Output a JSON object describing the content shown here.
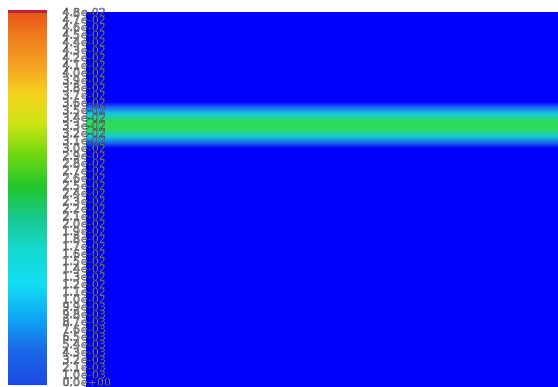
{
  "colormap": {
    "stops": [
      {
        "t": 0.0,
        "color": "#e8541a"
      },
      {
        "t": 0.06,
        "color": "#ee7a1c"
      },
      {
        "t": 0.14,
        "color": "#f4a020"
      },
      {
        "t": 0.22,
        "color": "#f5d21e"
      },
      {
        "t": 0.3,
        "color": "#cce515"
      },
      {
        "t": 0.38,
        "color": "#72d90f"
      },
      {
        "t": 0.47,
        "color": "#1fc62c"
      },
      {
        "t": 0.55,
        "color": "#18c88e"
      },
      {
        "t": 0.64,
        "color": "#14d9cf"
      },
      {
        "t": 0.73,
        "color": "#12ddf4"
      },
      {
        "t": 0.82,
        "color": "#0ea6f6"
      },
      {
        "t": 0.91,
        "color": "#1a66e6"
      },
      {
        "t": 1.0,
        "color": "#1b49e2"
      }
    ],
    "top_edge_color": "#c81e2a"
  },
  "tick_labels": [
    "4.8",
    "4.7",
    "4.6",
    "4.5",
    "4.4",
    "4.3",
    "4.2",
    "4.1",
    "4.0",
    "3.9",
    "3.8",
    "3.7",
    "3.6",
    "3.5",
    "3.4",
    "3.3",
    "3.2",
    "3.1",
    "3.0",
    "2.9",
    "2.8",
    "2.7",
    "2.6",
    "2.5",
    "2.4",
    "2.3",
    "2.2",
    "2.1",
    "2.0",
    "1.9",
    "1.8",
    "1.7",
    "1.6",
    "1.5",
    "1.4",
    "1.3",
    "1.2",
    "1.1",
    "1.0",
    "9.9",
    "9.8",
    "8.7",
    "7.6",
    "6.5",
    "5.4",
    "4.3",
    "3.2",
    "2.1",
    "1.0",
    "0.0"
  ],
  "tick_exponents": [
    "e-02",
    "e-02",
    "e-02",
    "e-02",
    "e-02",
    "e-02",
    "e-02",
    "e-02",
    "e-02",
    "e-02",
    "e-02",
    "e-02",
    "e-02",
    "e-02",
    "e-02",
    "e-02",
    "e-02",
    "e-02",
    "e-02",
    "e-02",
    "e-02",
    "e-02",
    "e-02",
    "e-02",
    "e-02",
    "e-02",
    "e-02",
    "e-02",
    "e-02",
    "e-02",
    "e-02",
    "e-02",
    "e-02",
    "e-02",
    "e-02",
    "e-02",
    "e-02",
    "e-02",
    "e-02",
    "e-03",
    "e-03",
    "e-03",
    "e-03",
    "e-03",
    "e-03",
    "e-03",
    "e-03",
    "e-03",
    "e-03",
    "e+00"
  ],
  "field": {
    "background_color": "#0000ff",
    "jet": {
      "core_color": "#2ddc5a",
      "mid_color": "#18c8d8",
      "edge_color": "#1a5cf0"
    }
  }
}
